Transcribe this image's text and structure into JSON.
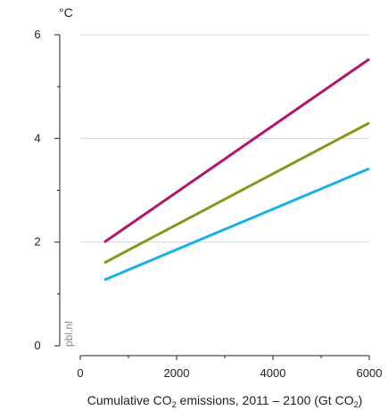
{
  "chart_data": {
    "type": "line",
    "ylabel": "°C",
    "xlabel": {
      "parts": [
        {
          "text": "Cumulative CO",
          "sub": false
        },
        {
          "text": "2",
          "sub": true
        },
        {
          "text": " emissions, 2011 – 2100 (Gt CO",
          "sub": false
        },
        {
          "text": "2",
          "sub": true
        },
        {
          "text": ")",
          "sub": false
        }
      ]
    },
    "xlim": [
      0,
      6000
    ],
    "ylim": [
      0,
      6
    ],
    "xticks": [
      0,
      2000,
      4000,
      6000
    ],
    "yticks": [
      0,
      2,
      4,
      6
    ],
    "x_minor_ticks": [
      1000,
      3000,
      5000
    ],
    "y_minor_ticks": [
      1,
      3,
      5
    ],
    "grid": "horizontal",
    "watermark": "pbl.nl",
    "series": [
      {
        "color": "#b5146b",
        "x": [
          500,
          6000
        ],
        "y": [
          2.0,
          5.53
        ]
      },
      {
        "color": "#7f9a1c",
        "x": [
          500,
          6000
        ],
        "y": [
          1.6,
          4.3
        ]
      },
      {
        "color": "#1ab0e6",
        "x": [
          500,
          6000
        ],
        "y": [
          1.27,
          3.42
        ]
      }
    ]
  }
}
